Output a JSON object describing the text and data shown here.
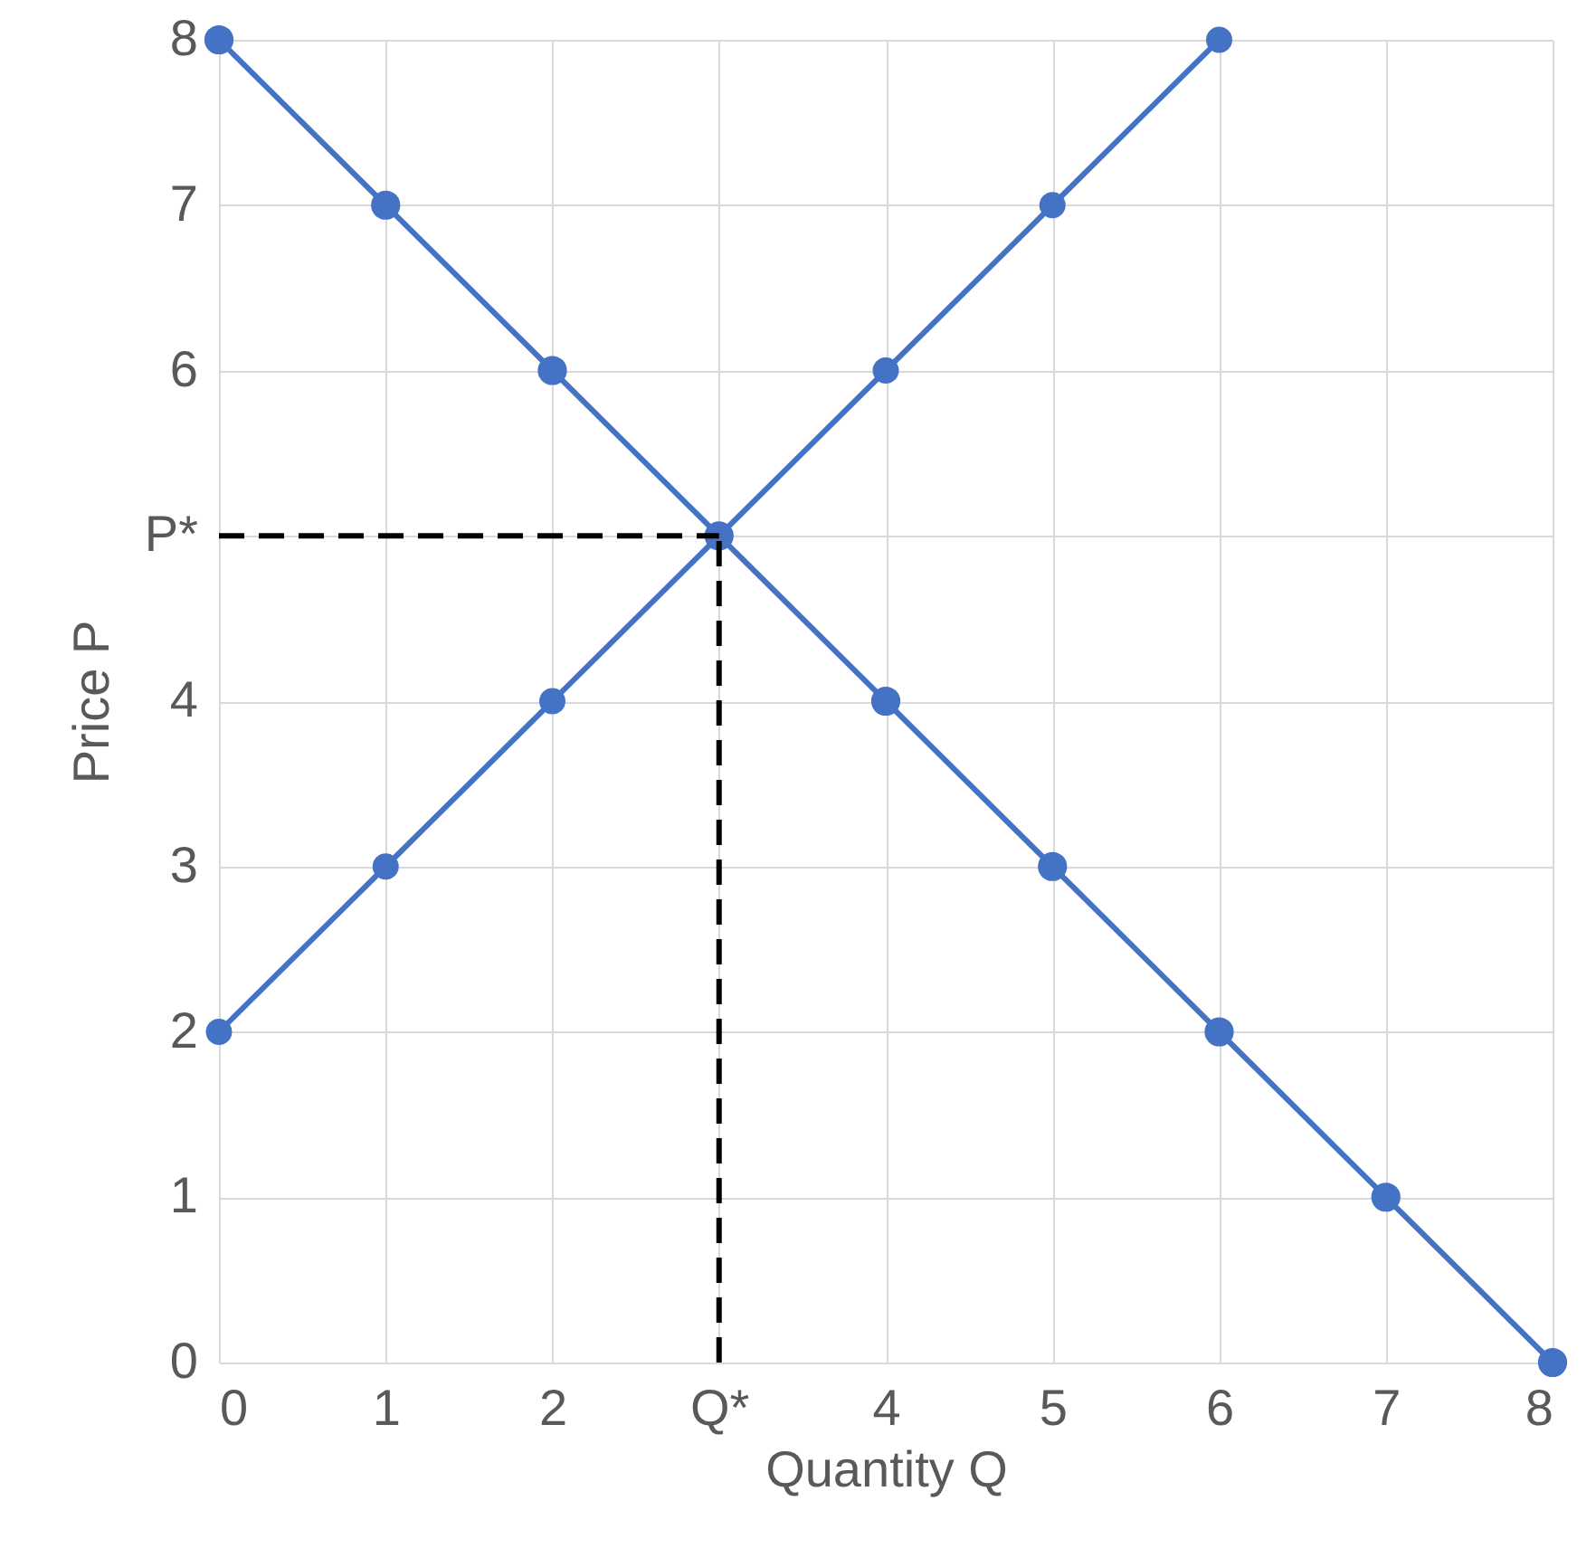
{
  "chart_data": {
    "type": "line",
    "xlabel": "Quantity Q",
    "ylabel": "Price P",
    "xlim": [
      0,
      8
    ],
    "ylim": [
      0,
      8
    ],
    "xticks": [
      0,
      1,
      2,
      {
        "value": 3,
        "label": "Q*"
      },
      4,
      5,
      6,
      7,
      8
    ],
    "yticks": [
      0,
      1,
      2,
      3,
      4,
      {
        "value": 5,
        "label": "P*"
      },
      6,
      7,
      8
    ],
    "grid": true,
    "marker": "circle",
    "line_style": "solid",
    "series": [
      {
        "color": "#4472c4",
        "x": [
          0,
          1,
          2,
          3,
          4,
          5,
          6,
          7,
          8
        ],
        "values": [
          8,
          7,
          6,
          5,
          4,
          3,
          2,
          1,
          0
        ]
      },
      {
        "color": "#4472c4",
        "x": [
          0,
          1,
          2,
          3,
          4,
          5,
          6
        ],
        "values": [
          2,
          3,
          4,
          5,
          6,
          7,
          8
        ]
      },
      {
        "color": "#000000",
        "x": [
          0,
          3
        ],
        "values": [
          5,
          5
        ],
        "line_style": "dashed",
        "marker": "none"
      },
      {
        "color": "#000000",
        "x": [
          3,
          3
        ],
        "values": [
          0,
          5
        ],
        "line_style": "dashed",
        "marker": "none"
      }
    ]
  }
}
